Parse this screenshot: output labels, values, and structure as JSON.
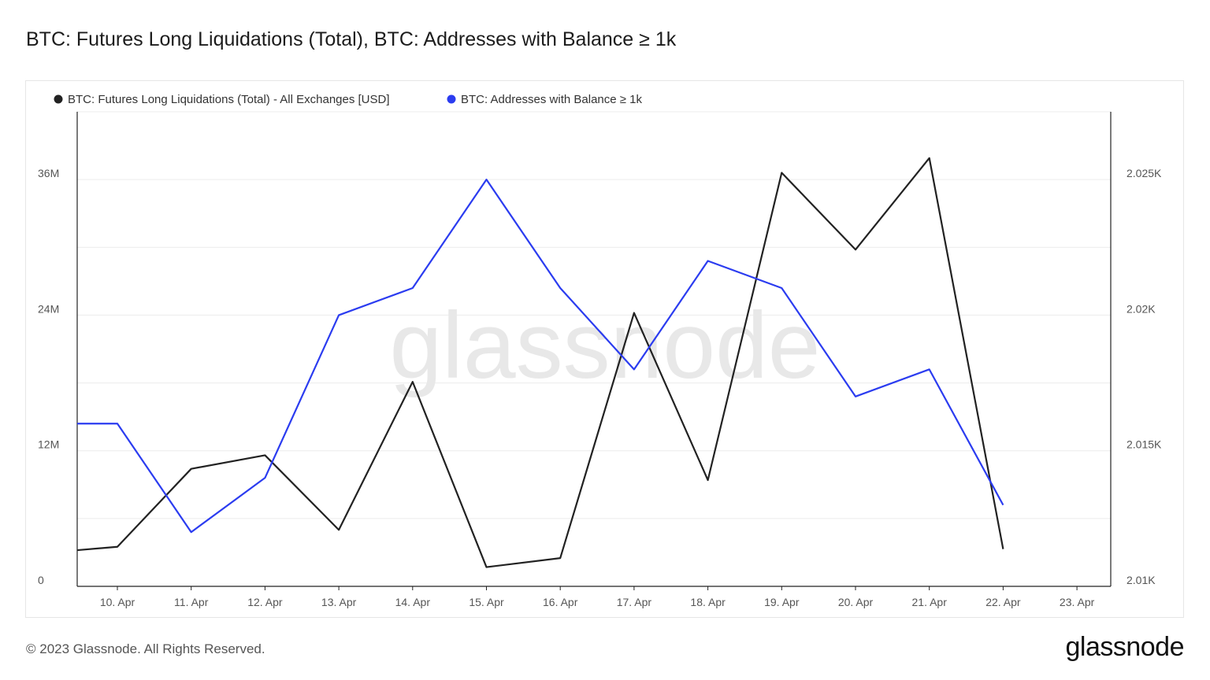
{
  "header": {
    "title": "BTC: Futures Long Liquidations (Total), BTC: Addresses with Balance ≥ 1k"
  },
  "footer": {
    "copyright": "© 2023 Glassnode. All Rights Reserved.",
    "logo": "glassnode"
  },
  "watermark": "glassnode",
  "chart_data": {
    "type": "line",
    "categories": [
      "10. Apr",
      "11. Apr",
      "12. Apr",
      "13. Apr",
      "14. Apr",
      "15. Apr",
      "16. Apr",
      "17. Apr",
      "18. Apr",
      "19. Apr",
      "20. Apr",
      "21. Apr",
      "22. Apr",
      "23. Apr"
    ],
    "series": [
      {
        "name": "BTC: Futures Long Liquidations (Total) - All Exchanges [USD]",
        "color": "#222222",
        "axis": "left",
        "start_value": 3200000,
        "values": [
          3500000,
          10400000,
          11600000,
          5000000,
          18100000,
          1700000,
          2500000,
          24200000,
          9400000,
          36600000,
          29800000,
          37900000,
          3300000,
          null
        ]
      },
      {
        "name": "BTC: Addresses with Balance ≥ 1k",
        "color": "#2b3cf0",
        "axis": "right",
        "start_value": 2016,
        "values": [
          2016,
          2012,
          2014,
          2020,
          2021,
          2025,
          2021,
          2018,
          2022,
          2021,
          2017,
          2018,
          2013,
          null
        ]
      }
    ],
    "left_axis": {
      "ticks": [
        "0",
        "12M",
        "24M",
        "36M"
      ],
      "tick_values": [
        0,
        12000000,
        24000000,
        36000000
      ],
      "ylim": [
        0,
        42000000
      ]
    },
    "right_axis": {
      "ticks": [
        "2.01K",
        "2.015K",
        "2.02K",
        "2.025K"
      ],
      "tick_values": [
        2010,
        2015,
        2020,
        2025
      ],
      "ylim": [
        2010,
        2027.5
      ]
    },
    "grid": true,
    "legend": "top-left"
  }
}
